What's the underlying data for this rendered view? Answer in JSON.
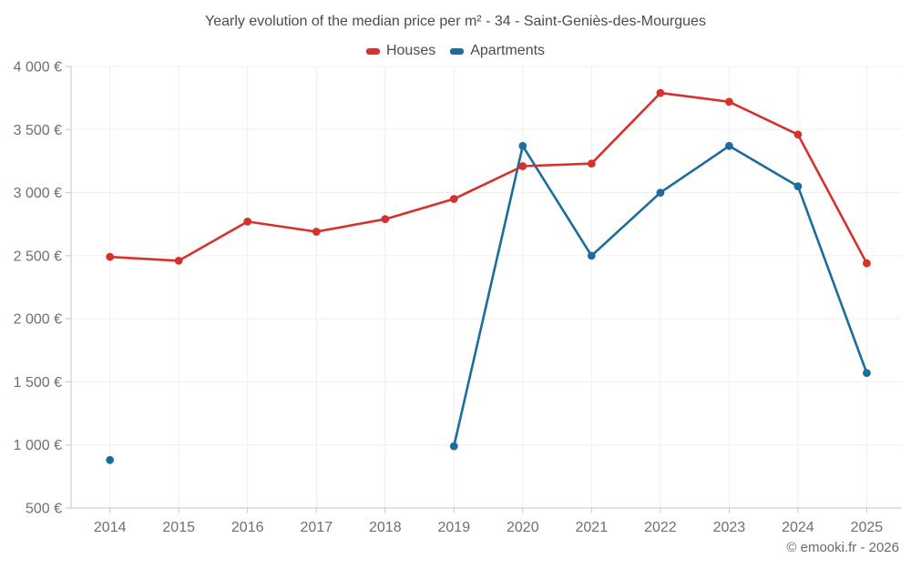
{
  "title": "Yearly evolution of the median price per m² - 34 - Saint-Geniès-des-Mourgues",
  "footer": {
    "text": "© emooki.fr - 2026"
  },
  "colors": {
    "houses": "#d6312d",
    "apartments": "#1b6d9e",
    "grid": "#efefef",
    "axis": "#c6c6c6",
    "tick_label": "#6f6f6f",
    "title_text": "#4b4b4b",
    "background": "#ffffff"
  },
  "chart_data": {
    "type": "line",
    "title": "Yearly evolution of the median price per m² - 34 - Saint-Geniès-des-Mourgues",
    "categories": [
      "2014",
      "2015",
      "2016",
      "2017",
      "2018",
      "2019",
      "2020",
      "2021",
      "2022",
      "2023",
      "2024",
      "2025"
    ],
    "series": [
      {
        "name": "Houses",
        "color": "#d6312d",
        "values": [
          2490,
          2460,
          2770,
          2690,
          2790,
          2950,
          3210,
          3230,
          3790,
          3720,
          3460,
          2440
        ]
      },
      {
        "name": "Apartments",
        "color": "#1b6d9e",
        "values": [
          880,
          null,
          null,
          null,
          null,
          990,
          3370,
          2500,
          3000,
          3370,
          3050,
          1570
        ]
      }
    ],
    "xlabel": "",
    "ylabel": "",
    "ylim": [
      500,
      4000
    ],
    "y_ticks": [
      500,
      1000,
      1500,
      2000,
      2500,
      3000,
      3500,
      4000
    ],
    "y_tick_labels": [
      "500 €",
      "1 000 €",
      "1 500 €",
      "2 000 €",
      "2 500 €",
      "3 000 €",
      "3 500 €",
      "4 000 €"
    ],
    "grid": true,
    "legend_position": "top",
    "missing_segments": "Apartments has no data for 2015-2018 (gap between isolated 2014 point and line starting 2019)"
  }
}
